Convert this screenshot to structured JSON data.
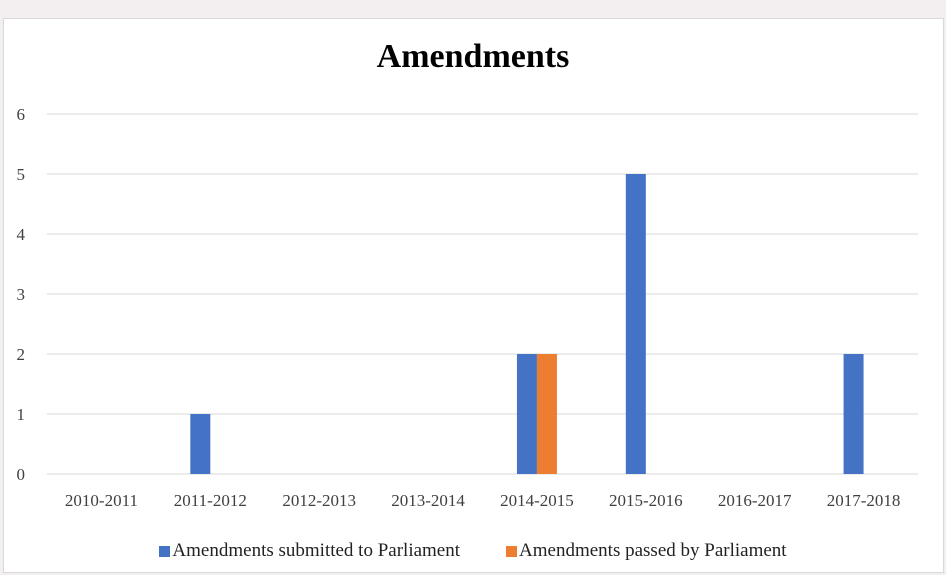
{
  "chart_data": {
    "type": "bar",
    "title": "Amendments",
    "xlabel": "",
    "ylabel": "",
    "categories": [
      "2010-2011",
      "2011-2012",
      "2012-2013",
      "2013-2014",
      "2014-2015",
      "2015-2016",
      "2016-2017",
      "2017-2018"
    ],
    "series": [
      {
        "name": "Amendments submitted to Parliament",
        "color": "#4472c4",
        "values": [
          0,
          1,
          0,
          0,
          2,
          5,
          0,
          2
        ]
      },
      {
        "name": "Amendments passed by Parliament",
        "color": "#ed7d31",
        "values": [
          0,
          0,
          0,
          0,
          2,
          0,
          0,
          0
        ]
      }
    ],
    "ylim": [
      0,
      6
    ],
    "yticks": [
      0,
      1,
      2,
      3,
      4,
      5,
      6
    ],
    "grid": true,
    "legend_position": "bottom"
  }
}
